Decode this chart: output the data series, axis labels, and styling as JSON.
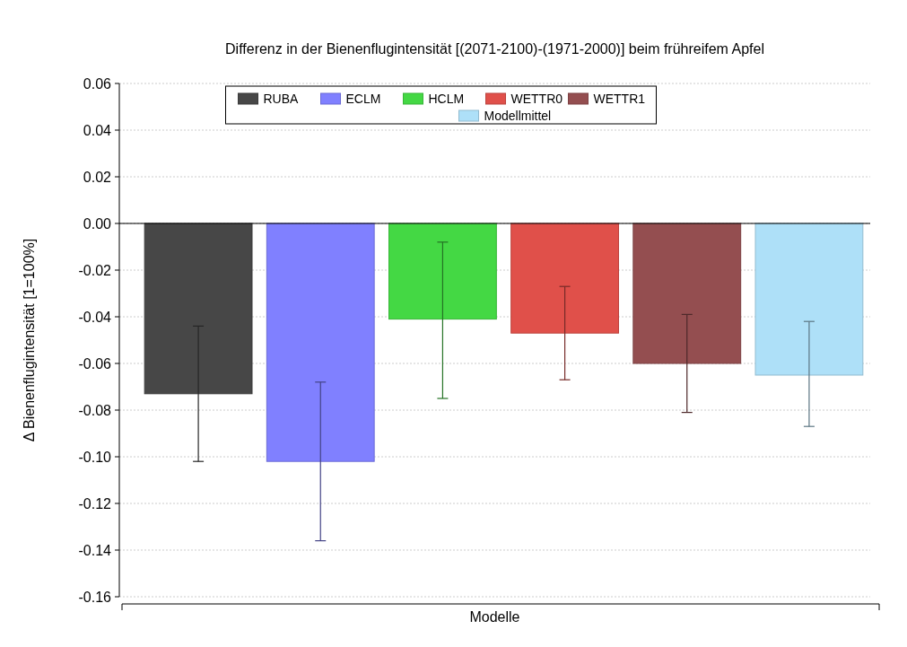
{
  "chart_data": {
    "type": "bar",
    "title": "Differenz in der Bienenflugintensität [(2071-2100)-(1971-2000)] beim frühreifem Apfel",
    "xlabel": "Modelle",
    "ylabel": "Δ Bienenflugintensität [1=100%]",
    "categories": [
      null
    ],
    "series": [
      {
        "name": "RUBA",
        "color": "#474747",
        "values": [
          -0.073
        ],
        "errors": [
          [
            -0.102,
            -0.044
          ]
        ]
      },
      {
        "name": "ECLM",
        "color": "#8080ff",
        "values": [
          -0.102
        ],
        "errors": [
          [
            -0.136,
            -0.068
          ]
        ]
      },
      {
        "name": "HCLM",
        "color": "#44d844",
        "values": [
          -0.041
        ],
        "errors": [
          [
            -0.075,
            -0.008
          ]
        ]
      },
      {
        "name": "WETTR0",
        "color": "#e0504a",
        "values": [
          -0.047
        ],
        "errors": [
          [
            -0.067,
            -0.027
          ]
        ]
      },
      {
        "name": "WETTR1",
        "color": "#944e50",
        "values": [
          -0.06
        ],
        "errors": [
          [
            -0.081,
            -0.039
          ]
        ]
      },
      {
        "name": "Modellmittel",
        "color": "#aee0f8",
        "values": [
          -0.065
        ],
        "errors": [
          [
            -0.087,
            -0.042
          ]
        ]
      }
    ],
    "ylim": [
      -0.16,
      0.06
    ],
    "yticks": [
      {
        "value": 0.06,
        "label": "0.06"
      },
      {
        "value": 0.04,
        "label": "0.04"
      },
      {
        "value": 0.02,
        "label": "0.02"
      },
      {
        "value": 0,
        "label": "0.00"
      },
      {
        "value": -0.02,
        "label": "-0.02"
      },
      {
        "value": -0.04,
        "label": "-0.04"
      },
      {
        "value": -0.06,
        "label": "-0.06"
      },
      {
        "value": -0.08,
        "label": "-0.08"
      },
      {
        "value": -0.1,
        "label": "-0.10"
      },
      {
        "value": -0.12,
        "label": "-0.12"
      },
      {
        "value": -0.14,
        "label": "-0.14"
      },
      {
        "value": -0.16,
        "label": "-0.16"
      }
    ],
    "grid": "y",
    "legend": "top"
  }
}
